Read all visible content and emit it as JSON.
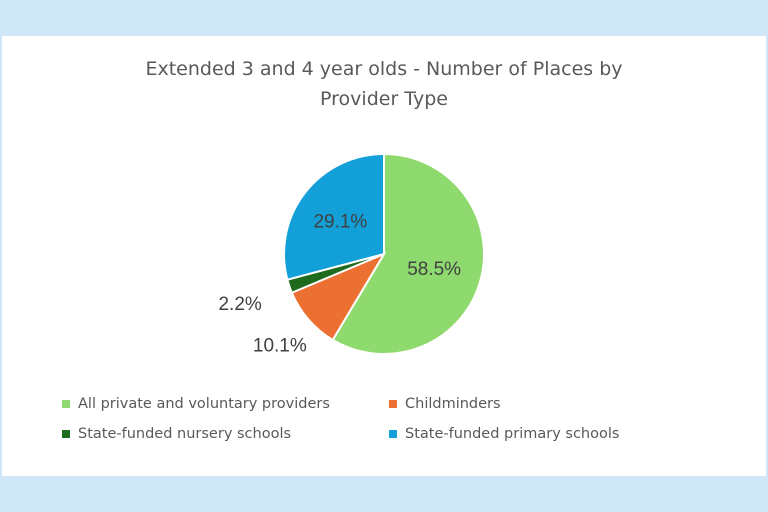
{
  "chart_data": {
    "type": "pie",
    "title_lines": [
      "Extended 3 and 4 year olds - Number of Places by",
      "Provider Type"
    ],
    "slices": [
      {
        "label": "All private and voluntary providers",
        "value": 58.5,
        "display": "58.5%",
        "color": "#8fda6f"
      },
      {
        "label": "Childminders",
        "value": 10.1,
        "display": "10.1%",
        "color": "#ed7033"
      },
      {
        "label": "State-funded nursery schools",
        "value": 2.2,
        "display": "2.2%",
        "color": "#1e6b1e"
      },
      {
        "label": "State-funded primary schools",
        "value": 29.1,
        "display": "29.1%",
        "color": "#13a0d9"
      }
    ],
    "legend_position": "bottom"
  }
}
